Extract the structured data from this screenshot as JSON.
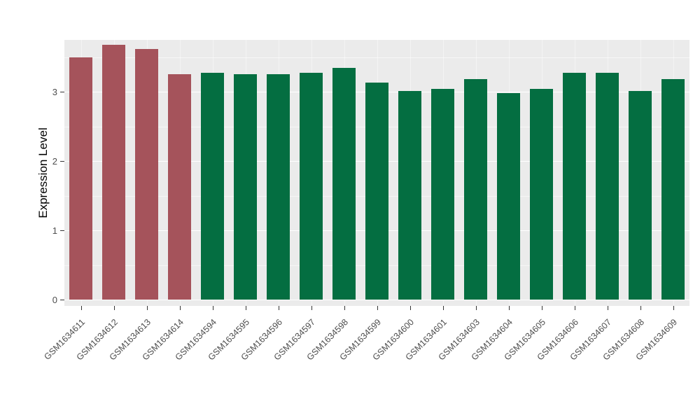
{
  "chart_data": {
    "type": "bar",
    "title": "",
    "xlabel": "",
    "ylabel": "Expression Level",
    "categories": [
      "GSM1634611",
      "GSM1634612",
      "GSM1634613",
      "GSM1634614",
      "GSM1634594",
      "GSM1634595",
      "GSM1634596",
      "GSM1634597",
      "GSM1634598",
      "GSM1634599",
      "GSM1634600",
      "GSM1634601",
      "GSM1634603",
      "GSM1634604",
      "GSM1634605",
      "GSM1634606",
      "GSM1634607",
      "GSM1634608",
      "GSM1634609"
    ],
    "values": [
      3.5,
      3.68,
      3.62,
      3.25,
      3.27,
      3.25,
      3.25,
      3.27,
      3.34,
      3.13,
      3.01,
      3.04,
      3.18,
      2.98,
      3.04,
      3.27,
      3.27,
      3.01,
      3.18
    ],
    "bar_colors": [
      "#A5535B",
      "#A5535B",
      "#A5535B",
      "#A5535B",
      "#046E41",
      "#046E41",
      "#046E41",
      "#046E41",
      "#046E41",
      "#046E41",
      "#046E41",
      "#046E41",
      "#046E41",
      "#046E41",
      "#046E41",
      "#046E41",
      "#046E41",
      "#046E41",
      "#046E41"
    ],
    "yticks": [
      0,
      1,
      2,
      3
    ],
    "ylim": [
      0,
      3.85
    ],
    "legend_position": "none",
    "grid": "on",
    "colors": {
      "panel_background": "#EBEBEB",
      "grid_major": "#FFFFFF",
      "highlight_red": "#A5535B",
      "highlight_green": "#046E41",
      "axis_text": "#4D4D4D"
    }
  }
}
